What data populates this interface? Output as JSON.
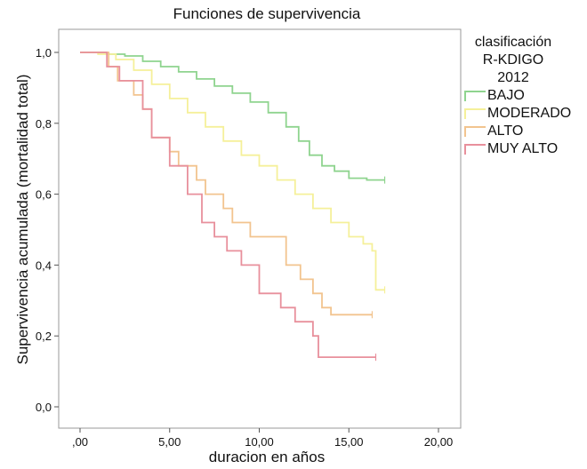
{
  "chart_data": {
    "type": "line",
    "title": "Funciones de supervivencia",
    "xlabel": "duracion en años",
    "ylabel": "Supervivencia acumulada (mortalidad total)",
    "xlim": [
      0,
      20
    ],
    "ylim": [
      0,
      1
    ],
    "x_ticks": [
      ",00",
      "5,00",
      "10,00",
      "15,00",
      "20,00"
    ],
    "y_ticks": [
      "0,0",
      "0,2",
      "0,4",
      "0,6",
      "0,8",
      "1,0"
    ],
    "legend_title_lines": [
      "clasificación",
      "R-KDIGO",
      "2012"
    ],
    "legend_position": "right",
    "series": [
      {
        "name": "BAJO",
        "color": "#8fd48f",
        "x": [
          0,
          0.8,
          1.5,
          2.5,
          3.5,
          4.5,
          5.5,
          6.5,
          7.5,
          8.5,
          9.5,
          10.5,
          11.5,
          12.2,
          12.8,
          13.5,
          14.2,
          15,
          16,
          17
        ],
        "y": [
          1,
          1,
          0.995,
          0.99,
          0.975,
          0.96,
          0.945,
          0.925,
          0.905,
          0.885,
          0.86,
          0.83,
          0.79,
          0.75,
          0.71,
          0.68,
          0.665,
          0.645,
          0.64,
          0.64
        ]
      },
      {
        "name": "MODERADO",
        "color": "#f5f09a",
        "x": [
          0,
          1,
          2,
          3,
          4,
          5,
          6,
          7,
          8,
          9,
          10,
          11,
          12,
          13,
          14,
          15,
          15.8,
          16.3,
          16.5,
          17
        ],
        "y": [
          1,
          0.995,
          0.98,
          0.95,
          0.91,
          0.87,
          0.83,
          0.79,
          0.75,
          0.71,
          0.68,
          0.64,
          0.6,
          0.56,
          0.52,
          0.48,
          0.46,
          0.44,
          0.33,
          0.33
        ]
      },
      {
        "name": "ALTO",
        "color": "#f2c48f",
        "x": [
          0,
          1,
          1.6,
          2.1,
          3,
          3.5,
          4,
          5,
          5.5,
          6.5,
          7,
          8,
          8.5,
          9.5,
          11.5,
          12.3,
          13,
          13.5,
          14,
          16.3
        ],
        "y": [
          1,
          1,
          0.96,
          0.92,
          0.88,
          0.84,
          0.76,
          0.72,
          0.68,
          0.64,
          0.6,
          0.56,
          0.52,
          0.48,
          0.4,
          0.36,
          0.32,
          0.28,
          0.26,
          0.26
        ]
      },
      {
        "name": "MUY ALTO",
        "color": "#e8909c",
        "x": [
          0,
          1,
          1.5,
          2.2,
          3.5,
          4,
          5,
          6,
          6.8,
          7.5,
          8.2,
          9,
          10,
          11.2,
          12,
          13,
          13.3,
          16.5
        ],
        "y": [
          1,
          1,
          0.96,
          0.92,
          0.84,
          0.76,
          0.68,
          0.6,
          0.52,
          0.48,
          0.44,
          0.4,
          0.32,
          0.28,
          0.24,
          0.2,
          0.14,
          0.14
        ]
      }
    ]
  }
}
